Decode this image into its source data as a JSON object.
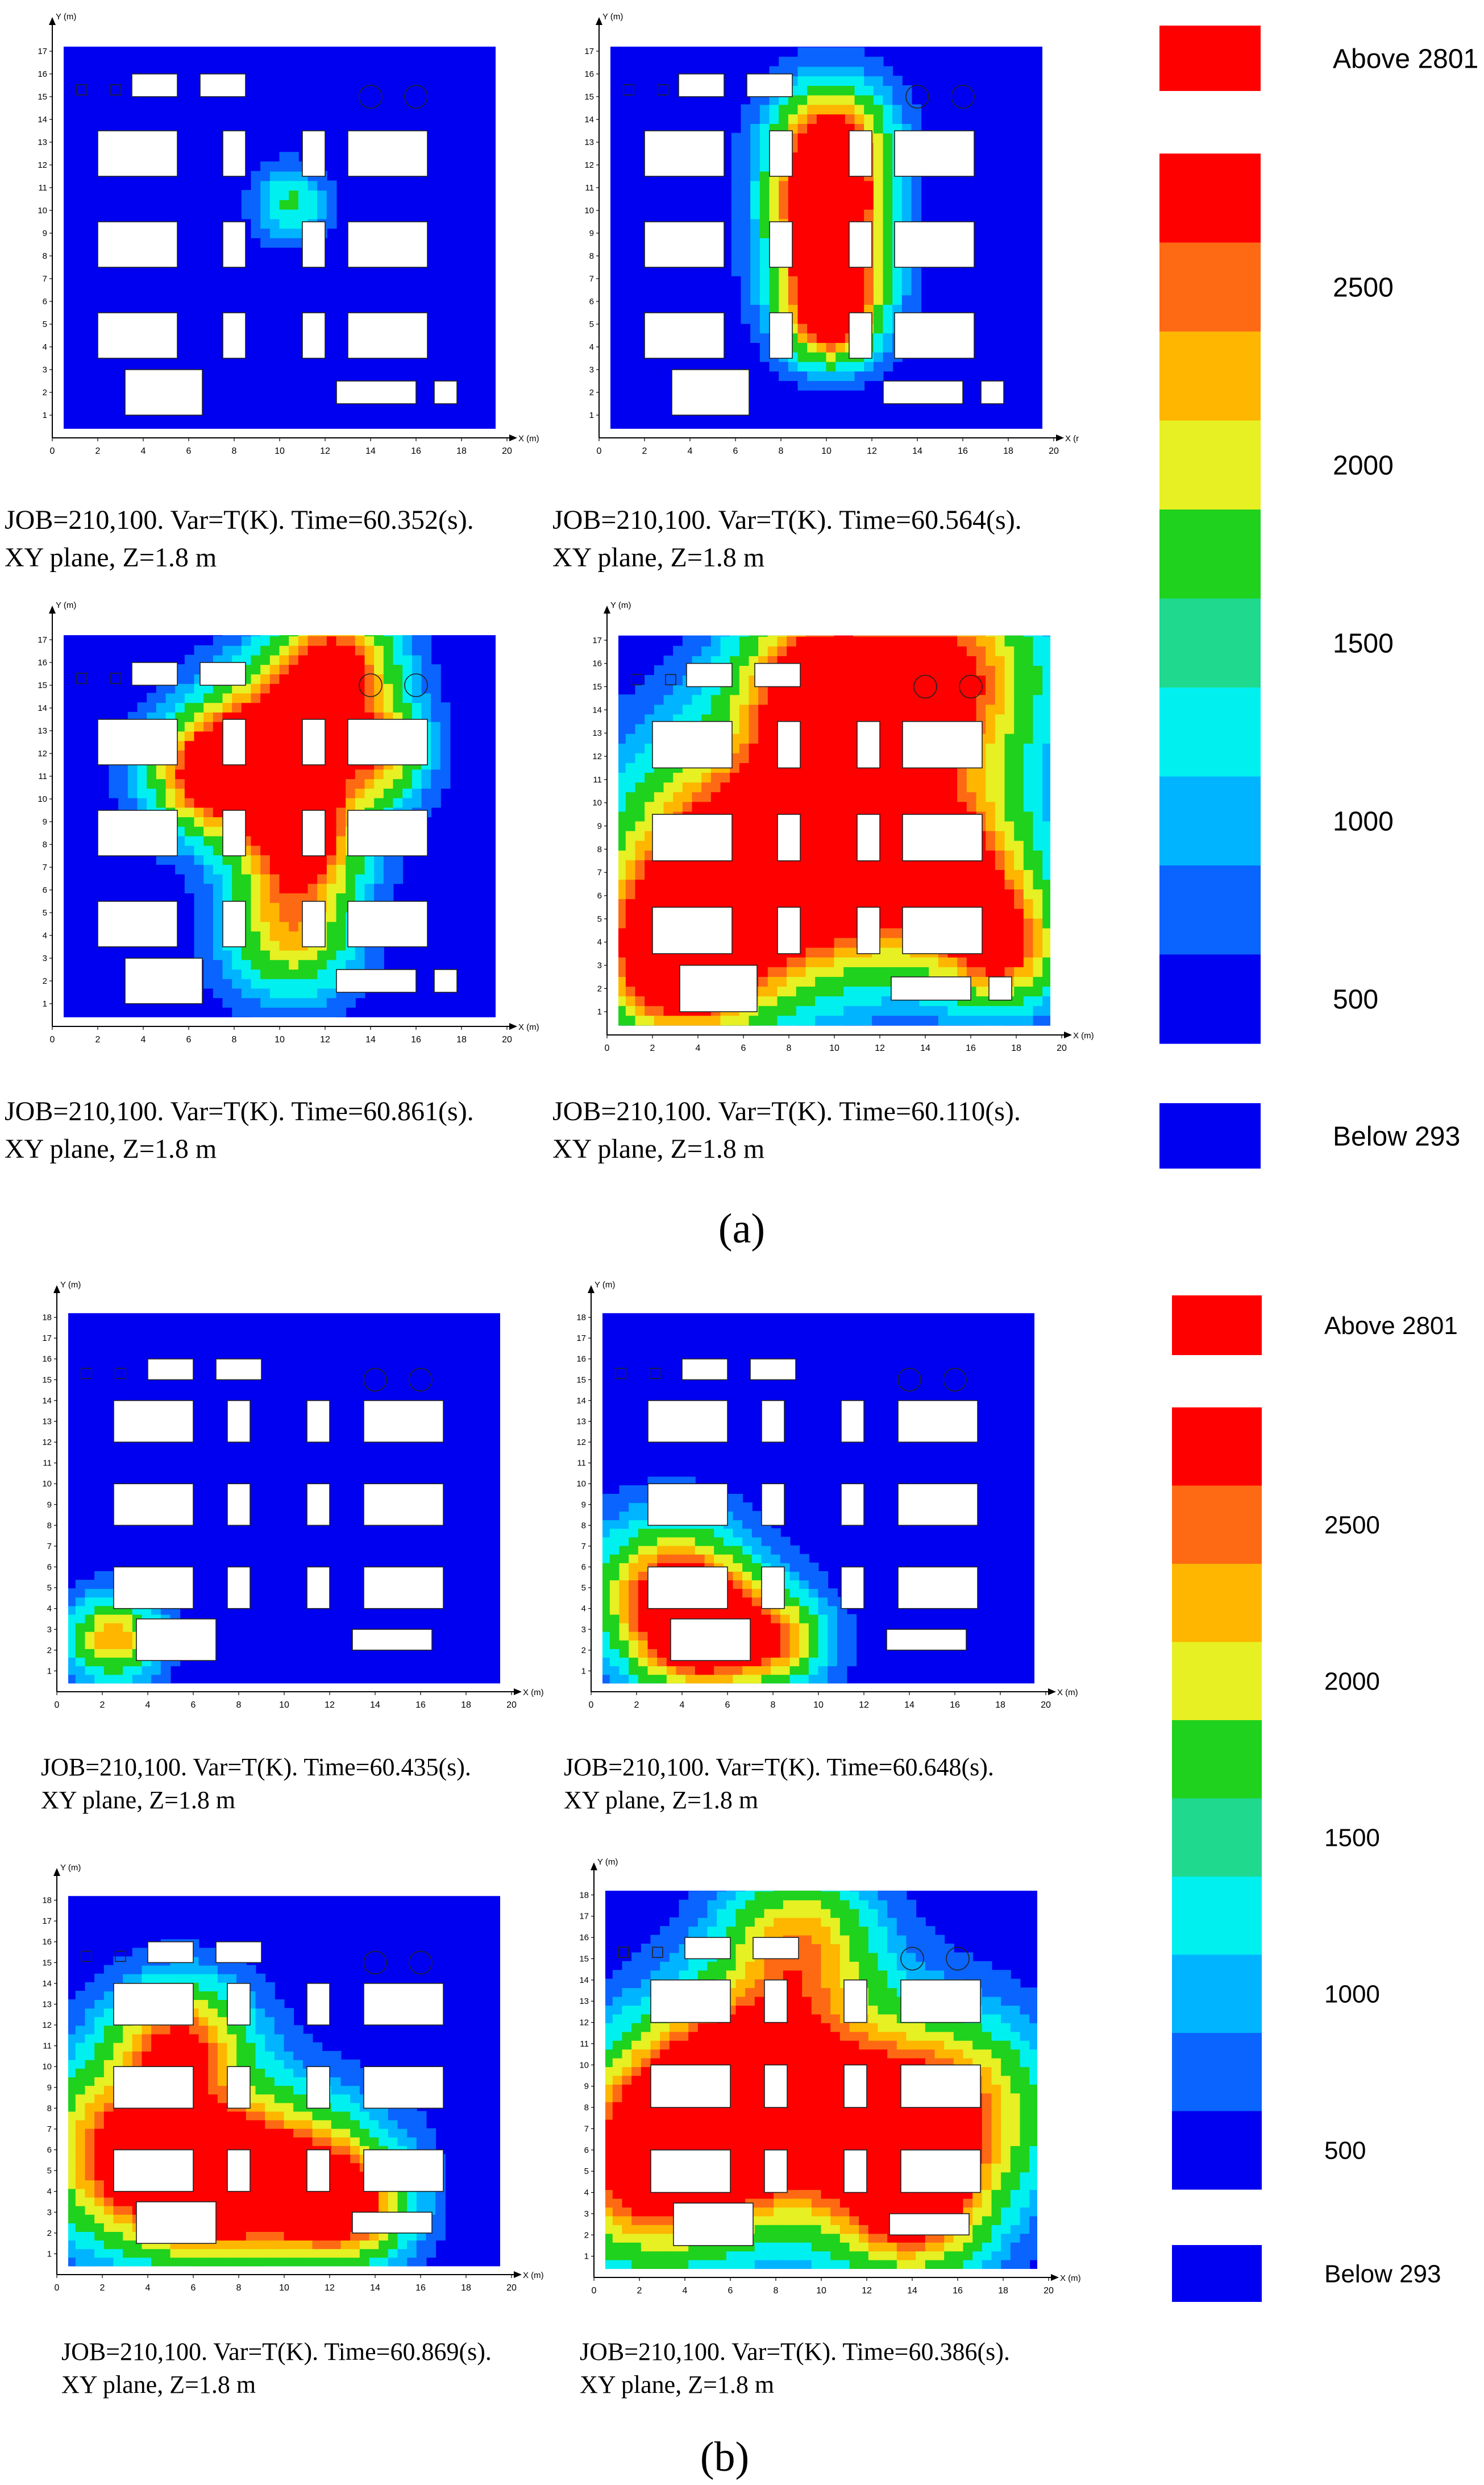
{
  "figure_labels": {
    "a": "(a)",
    "b": "(b)"
  },
  "axis": {
    "x_unit_label": "X (m)",
    "y_unit_label": "Y (m)",
    "x_truncated_label": "X (r",
    "x_ticks": [
      "0",
      "2",
      "4",
      "6",
      "8",
      "10",
      "12",
      "14",
      "16",
      "18",
      "20"
    ],
    "y_ticks_a": [
      "1",
      "2",
      "3",
      "4",
      "5",
      "6",
      "7",
      "8",
      "9",
      "10",
      "11",
      "12",
      "13",
      "14",
      "15",
      "16",
      "17"
    ],
    "y_ticks_b": [
      "1",
      "2",
      "3",
      "4",
      "5",
      "6",
      "7",
      "8",
      "9",
      "10",
      "11",
      "12",
      "13",
      "14",
      "15",
      "16",
      "17",
      "18"
    ]
  },
  "legend": {
    "above": "Above 2801",
    "below": "Below  293",
    "ticks": [
      "2500",
      "2000",
      "1500",
      "1000",
      "500"
    ],
    "band_colors": [
      "#fe0000",
      "#fe6a14",
      "#ffb600",
      "#e6f023",
      "#1ed21e",
      "#1ed98e",
      "#00f0f0",
      "#00b4ff",
      "#0a64ff",
      "#0000f0"
    ],
    "above_color": "#fe0000",
    "below_color": "#0000f0"
  },
  "colors": {
    "ambient": "#0000f0",
    "dark_blue": "#0a64ff",
    "light_blue": "#00b4ff",
    "cyan": "#00f0f0",
    "green": "#1ed21e",
    "yellow": "#e6f023",
    "orange": "#ffb600",
    "dark_orange": "#fe6a14",
    "red": "#fe0000"
  },
  "chart_data": [
    {
      "type": "heatmap",
      "panel": "a1",
      "caption_line1": "JOB=210,100. Var=T(K). Time=60.352(s).",
      "caption_line2": "XY plane, Z=1.8 m",
      "xlim": [
        0,
        20
      ],
      "ylim": [
        0,
        17
      ],
      "hotspots": [
        {
          "x": 10.5,
          "y": 10.3,
          "r": 1.9,
          "peak": 1500
        }
      ]
    },
    {
      "type": "heatmap",
      "panel": "a2",
      "caption_line1": "JOB=210,100. Var=T(K). Time=60.564(s).",
      "caption_line2": "XY plane, Z=1.8 m",
      "xlim": [
        0,
        20
      ],
      "ylim": [
        0,
        17
      ],
      "hotspots": [
        {
          "x": 10.2,
          "y": 13.2,
          "r": 3.0,
          "peak": 2900
        },
        {
          "x": 10.0,
          "y": 10.2,
          "r": 2.8,
          "peak": 2900
        },
        {
          "x": 10.2,
          "y": 7.0,
          "r": 3.0,
          "peak": 2900
        },
        {
          "x": 10.2,
          "y": 4.8,
          "r": 2.2,
          "peak": 2000
        }
      ]
    },
    {
      "type": "heatmap",
      "panel": "a3",
      "caption_line1": "JOB=210,100. Var=T(K). Time=60.861(s).",
      "caption_line2": "XY plane, Z=1.8 m",
      "xlim": [
        0,
        20
      ],
      "ylim": [
        0,
        17
      ],
      "hotspots": [
        {
          "x": 12.5,
          "y": 16.0,
          "r": 3.2,
          "peak": 2900
        },
        {
          "x": 9.5,
          "y": 12.5,
          "r": 3.6,
          "peak": 2900
        },
        {
          "x": 11.0,
          "y": 8.5,
          "r": 3.2,
          "peak": 2900
        },
        {
          "x": 6.5,
          "y": 11.0,
          "r": 3.0,
          "peak": 2400
        },
        {
          "x": 10.5,
          "y": 4.0,
          "r": 3.4,
          "peak": 2200
        },
        {
          "x": 14.5,
          "y": 12.0,
          "r": 2.6,
          "peak": 2000
        }
      ]
    },
    {
      "type": "heatmap",
      "panel": "a4",
      "caption_line1": "JOB=210,100. Var=T(K). Time=60.110(s).",
      "caption_line2": "XY plane, Z=1.8 m",
      "xlim": [
        0,
        20
      ],
      "ylim": [
        0,
        17
      ],
      "hotspots": [
        {
          "x": 5.0,
          "y": 7.0,
          "r": 6.5,
          "peak": 2600
        },
        {
          "x": 10.0,
          "y": 8.0,
          "r": 6.0,
          "peak": 2600
        },
        {
          "x": 15.0,
          "y": 15.5,
          "r": 5.0,
          "peak": 2900
        },
        {
          "x": 9.0,
          "y": 15.5,
          "r": 4.0,
          "peak": 2600
        },
        {
          "x": 15.5,
          "y": 7.0,
          "r": 4.5,
          "peak": 2200
        },
        {
          "x": 3.0,
          "y": 3.0,
          "r": 4.0,
          "peak": 2600
        },
        {
          "x": 17.5,
          "y": 3.5,
          "r": 3.0,
          "peak": 2200
        }
      ]
    },
    {
      "type": "heatmap",
      "panel": "b1",
      "caption_line1": "JOB=210,100. Var=T(K). Time=60.435(s).",
      "caption_line2": "XY plane, Z=1.8 m",
      "xlim": [
        0,
        20
      ],
      "ylim": [
        0,
        18
      ],
      "hotspots": [
        {
          "x": 2.5,
          "y": 2.6,
          "r": 2.4,
          "peak": 2500
        }
      ]
    },
    {
      "type": "heatmap",
      "panel": "b2",
      "caption_line1": "JOB=210,100. Var=T(K). Time=60.648(s).",
      "caption_line2": "XY plane, Z=1.8 m",
      "xlim": [
        0,
        20
      ],
      "ylim": [
        0,
        18
      ],
      "hotspots": [
        {
          "x": 3.5,
          "y": 5.0,
          "r": 4.0,
          "peak": 2600
        },
        {
          "x": 5.0,
          "y": 2.5,
          "r": 3.5,
          "peak": 2500
        },
        {
          "x": 8.5,
          "y": 2.5,
          "r": 2.6,
          "peak": 1800
        }
      ]
    },
    {
      "type": "heatmap",
      "panel": "b3",
      "caption_line1": "JOB=210,100. Var=T(K). Time=60.869(s).",
      "caption_line2": "XY plane, Z=1.8 m",
      "xlim": [
        0,
        20
      ],
      "ylim": [
        0,
        18
      ],
      "hotspots": [
        {
          "x": 3.0,
          "y": 6.0,
          "r": 5.0,
          "peak": 2700
        },
        {
          "x": 7.0,
          "y": 4.0,
          "r": 4.5,
          "peak": 2400
        },
        {
          "x": 11.0,
          "y": 5.0,
          "r": 4.5,
          "peak": 2100
        },
        {
          "x": 5.5,
          "y": 11.5,
          "r": 3.5,
          "peak": 2400
        },
        {
          "x": 13.0,
          "y": 3.0,
          "r": 3.0,
          "peak": 2000
        }
      ]
    },
    {
      "type": "heatmap",
      "panel": "b4",
      "caption_line1": "JOB=210,100. Var=T(K). Time=60.386(s).",
      "caption_line2": "XY plane, Z=1.8 m",
      "xlim": [
        0,
        20
      ],
      "ylim": [
        0,
        18
      ],
      "hotspots": [
        {
          "x": 2.5,
          "y": 5.0,
          "r": 5.5,
          "peak": 2900
        },
        {
          "x": 5.5,
          "y": 9.0,
          "r": 5.0,
          "peak": 2500
        },
        {
          "x": 10.0,
          "y": 8.0,
          "r": 6.0,
          "peak": 2400
        },
        {
          "x": 16.0,
          "y": 8.0,
          "r": 5.0,
          "peak": 2300
        },
        {
          "x": 9.0,
          "y": 16.0,
          "r": 4.0,
          "peak": 2200
        },
        {
          "x": 14.0,
          "y": 3.0,
          "r": 4.0,
          "peak": 2400
        }
      ]
    }
  ]
}
